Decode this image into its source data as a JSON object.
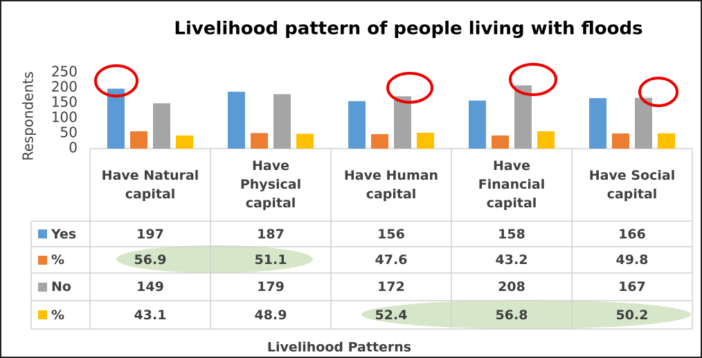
{
  "chart_data": {
    "type": "bar",
    "title": "Livelihood pattern of people living with floods",
    "y_label": "Respondents",
    "x_label": "Livelihood Patterns",
    "categories": [
      "Have Natural capital",
      "Have Physical capital",
      "Have Human capital",
      "Have Financial capital",
      "Have Social capital"
    ],
    "series": [
      {
        "name": "Yes",
        "color": "#5b9bd5",
        "values": [
          197,
          187,
          156,
          158,
          166
        ]
      },
      {
        "name": "%",
        "color": "#ed7d31",
        "values": [
          56.9,
          51.1,
          47.6,
          43.2,
          49.8
        ]
      },
      {
        "name": "No",
        "color": "#a5a5a5",
        "values": [
          149,
          179,
          172,
          208,
          167
        ]
      },
      {
        "name": "%",
        "color": "#ffc000",
        "values": [
          43.1,
          48.9,
          52.4,
          56.8,
          50.2
        ]
      }
    ],
    "ylim": [
      0,
      250
    ],
    "yticks": [
      0,
      50,
      100,
      150,
      200,
      250
    ],
    "grid": false
  }
}
